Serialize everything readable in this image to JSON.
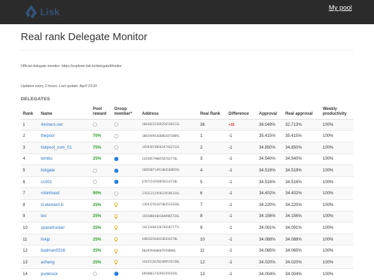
{
  "app": {
    "logo_text": "Lisk",
    "nav_link": "My pool"
  },
  "page": {
    "title": "Real rank Delegate Monitor",
    "official": "Official delegate monitor: https://explorer.lisk.io/delegateMonitor",
    "updates": "Updates every 2 hours. Last update: Apr9 23:20",
    "section_title": "DELEGATES"
  },
  "table": {
    "headers": [
      "Rank",
      "Name",
      "Pool reward",
      "Group member*",
      "Address",
      "Real Rank",
      "Difference",
      "Approval",
      "Real approval",
      "Weekly productivity"
    ],
    "rows": [
      {
        "rank": "1",
        "name": "4miners.net",
        "reward": "",
        "member": "none",
        "address": "16010222169256538113L",
        "real_rank": "36",
        "diff": "+35",
        "approval": "36.049%",
        "real_approval": "32.713%",
        "productivity": "100%"
      },
      {
        "rank": "2",
        "name": "thepool",
        "reward": "70%",
        "member": "none",
        "address": "10839494368003872009L",
        "real_rank": "1",
        "diff": "-1",
        "approval": "35.415%",
        "real_approval": "35.415%",
        "productivity": "100%"
      },
      {
        "rank": "3",
        "name": "liskpool_com_01",
        "reward": "75%",
        "member": "none",
        "address": "14593474056247442712L",
        "real_rank": "2",
        "diff": "-1",
        "approval": "34.850%",
        "real_approval": "34.850%",
        "productivity": "100%"
      },
      {
        "rank": "4",
        "name": "tembo",
        "reward": "25%",
        "member": "member",
        "address": "2433857900558702776L",
        "real_rank": "3",
        "diff": "-1",
        "approval": "34.540%",
        "real_approval": "34.540%",
        "productivity": "100%"
      },
      {
        "rank": "5",
        "name": "liskgate",
        "reward": "",
        "member": "member",
        "address": "16856071491404168654L",
        "real_rank": "4",
        "diff": "-1",
        "approval": "34.519%",
        "real_approval": "34.519%",
        "productivity": "100%"
      },
      {
        "rank": "6",
        "name": "cc001",
        "reward": "",
        "member": "member",
        "address": "6787154358850114730L",
        "real_rank": "5",
        "diff": "-1",
        "approval": "34.516%",
        "real_approval": "34.516%",
        "productivity": "100%"
      },
      {
        "rank": "7",
        "name": "robinhood",
        "reward": "90%",
        "member": "none",
        "address": "17621212458226596154L",
        "real_rank": "6",
        "diff": "-1",
        "approval": "34.402%",
        "real_approval": "34.402%",
        "productivity": "100%"
      },
      {
        "rank": "8",
        "name": "iii.element.iii",
        "reward": "25%",
        "member": "bulb",
        "address": "13943256167403531820L",
        "real_rank": "7",
        "diff": "-1",
        "approval": "34.220%",
        "real_approval": "34.220%",
        "productivity": "100%"
      },
      {
        "rank": "9",
        "name": "leo",
        "reward": "25%",
        "member": "bulb",
        "address": "15458801843048965724L",
        "real_rank": "8",
        "diff": "-1",
        "approval": "34.156%",
        "real_approval": "34.156%",
        "productivity": "100%"
      },
      {
        "rank": "10",
        "name": "spacetrucker",
        "reward": "25%",
        "member": "bulb",
        "address": "14212484126746187777L",
        "real_rank": "9",
        "diff": "-1",
        "approval": "34.091%",
        "real_approval": "34.091%",
        "productivity": "100%"
      },
      {
        "rank": "11",
        "name": "liskjp",
        "reward": "25%",
        "member": "bulb",
        "address": "4402625644336434270L",
        "real_rank": "10",
        "diff": "-1",
        "approval": "34.088%",
        "real_approval": "34.088%",
        "productivity": "100%"
      },
      {
        "rank": "12",
        "name": "badman0316",
        "reward": "25%",
        "member": "bulb",
        "address": "801959460607939888L",
        "real_rank": "11",
        "diff": "-1",
        "approval": "34.065%",
        "real_approval": "34.065%",
        "productivity": "100%"
      },
      {
        "rank": "13",
        "name": "acheng",
        "reward": "25%",
        "member": "bulb",
        "address": "15435156702499576720L",
        "real_rank": "12",
        "diff": "-1",
        "approval": "34.020%",
        "real_approval": "34.020%",
        "productivity": "100%"
      },
      {
        "rank": "14",
        "name": "punkrock",
        "reward": "",
        "member": "member",
        "address": "6850061742992593192L",
        "real_rank": "13",
        "diff": "-1",
        "approval": "34.004%",
        "real_approval": "34.004%",
        "productivity": "100%"
      }
    ]
  },
  "colors": {
    "topbar": "#2b2b2b",
    "link": "#2a73c4",
    "reward": "#2e9e2e",
    "positive_diff": "#e03030",
    "member_dot": "#1f7fe0",
    "bulb": "#e0a800"
  }
}
